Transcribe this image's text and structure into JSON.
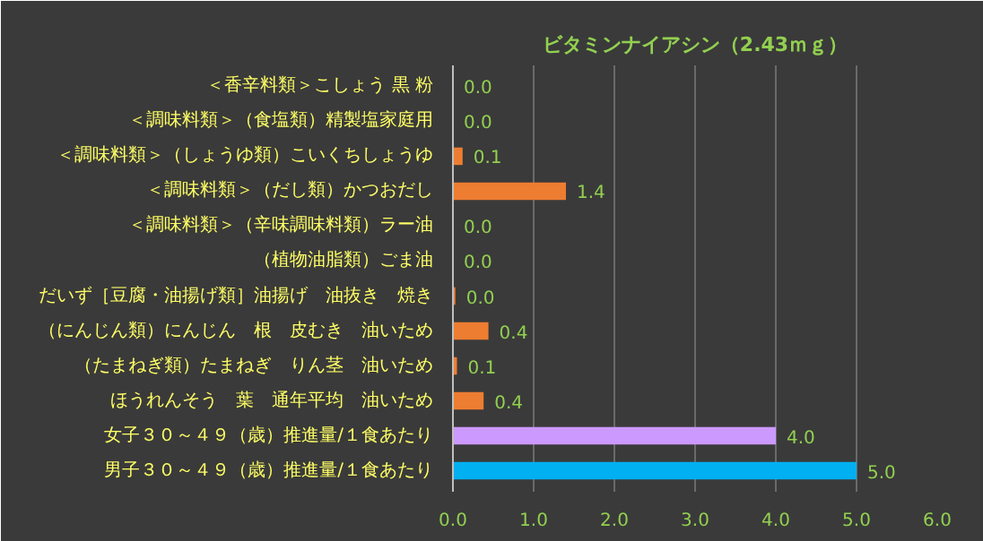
{
  "chart_data": {
    "type": "bar",
    "orientation": "horizontal",
    "title": "ビタミンナイアシン（2.43ｍｇ）",
    "categories": [
      "＜香辛料類＞こしょう 黒 粉",
      "＜調味料類＞（食塩類）精製塩家庭用",
      "＜調味料類＞（しょうゆ類）こいくちしょうゆ",
      "＜調味料類＞（だし類）かつおだし",
      "＜調味料類＞（辛味調味料類）ラー油",
      "（植物油脂類）ごま油",
      "だいず［豆腐・油揚げ類］油揚げ　油抜き　焼き",
      "（にんじん類）にんじん　根　皮むき　油いため",
      "（たまねぎ類）たまねぎ　りん茎　油いため",
      "ほうれんそう　葉　通年平均　油いため",
      "女子３０～４９（歳）推進量/１食あたり",
      "男子３０～４９（歳）推進量/１食あたり"
    ],
    "values": [
      0.0,
      0.0,
      0.12,
      1.4,
      0.0,
      0.0,
      0.03,
      0.44,
      0.05,
      0.38,
      4.0,
      5.0
    ],
    "value_labels": [
      "0.0",
      "0.0",
      "0.1",
      "1.4",
      "0.0",
      "0.0",
      "0.0",
      "0.4",
      "0.1",
      "0.4",
      "4.0",
      "5.0"
    ],
    "colors": [
      "#ed7d31",
      "#ed7d31",
      "#ed7d31",
      "#ed7d31",
      "#ed7d31",
      "#ed7d31",
      "#ed7d31",
      "#ed7d31",
      "#ed7d31",
      "#ed7d31",
      "#cc99ff",
      "#00b0f0"
    ],
    "xlim": [
      0,
      6
    ],
    "xticks": [
      "0.0",
      "1.0",
      "2.0",
      "3.0",
      "4.0",
      "5.0",
      "6.0"
    ],
    "grid": "x"
  }
}
